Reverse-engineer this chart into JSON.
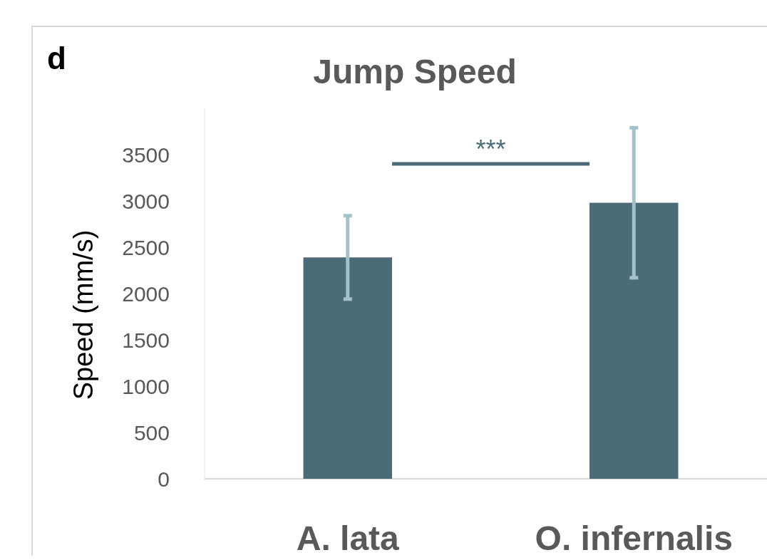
{
  "chart_data": {
    "type": "bar",
    "title": "Jump Speed",
    "ylabel": "Speed (mm/s)",
    "categories": [
      "A. lata",
      "O. infernalis"
    ],
    "series": [
      {
        "color": "#4b6b78",
        "values": [
          2390,
          2980
        ],
        "errors": [
          450,
          810
        ]
      }
    ],
    "ylim": [
      0,
      4000
    ],
    "yticks": [
      0,
      500,
      1000,
      1500,
      2000,
      2500,
      3000,
      3500
    ],
    "grid": false,
    "annotations": [
      "d",
      "***"
    ]
  }
}
